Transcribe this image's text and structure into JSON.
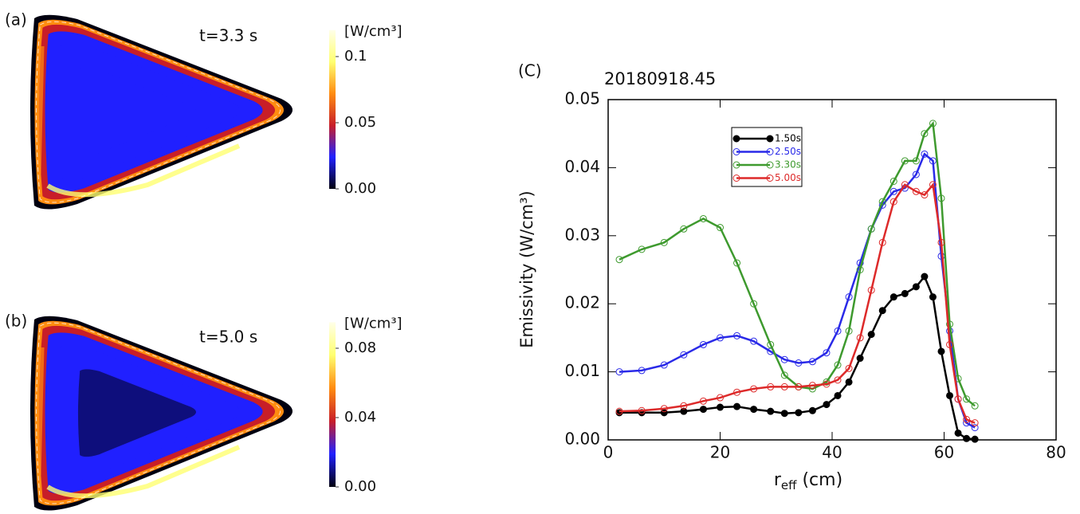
{
  "chart_data": [
    {
      "type": "heatmap",
      "panel_label": "(a)",
      "annotation": "t=3.3 s",
      "colorbar_label": "[W/cm³]",
      "clim": [
        0,
        0.12
      ],
      "cticks": [
        {
          "value": 0,
          "label": "0.00"
        },
        0.05,
        0.1
      ],
      "colormap": [
        "#000010",
        "#2020ff",
        "#c81e28",
        "#ff8c10",
        "#ffff70",
        "#ffffe8"
      ]
    },
    {
      "type": "heatmap",
      "panel_label": "(b)",
      "annotation": "t=5.0 s",
      "colorbar_label": "[W/cm³]",
      "clim": [
        0,
        0.095
      ],
      "cticks": [
        {
          "value": 0,
          "label": "0.00"
        },
        0.04,
        0.08
      ],
      "colormap": [
        "#000010",
        "#2020ff",
        "#c81e28",
        "#ff8c10",
        "#ffff70",
        "#ffffe8"
      ]
    },
    {
      "type": "line",
      "panel_label": "(C)",
      "title": "20180918.45",
      "xlabel": [
        "r",
        "eff",
        " (cm)"
      ],
      "ylabel": "Emissivity (W/cm³)",
      "xlim": [
        0,
        80
      ],
      "xticks": [
        0,
        20,
        40,
        60,
        80
      ],
      "ylim": [
        0,
        0.05
      ],
      "yticks": [
        {
          "value": 0,
          "label": "0.00"
        },
        0.01,
        0.02,
        0.03,
        0.04,
        0.05
      ],
      "x": [
        2,
        6,
        10,
        13.5,
        17,
        20,
        23,
        26,
        29,
        31.5,
        34,
        36.5,
        39,
        41,
        43,
        45,
        47,
        49,
        51,
        53,
        55,
        56.5,
        58,
        59.5,
        61,
        62.5,
        64,
        65.5
      ],
      "series": [
        {
          "name": "1.50s",
          "color": "#000000",
          "filled": true,
          "values": [
            0.004,
            0.004,
            0.004,
            0.0042,
            0.0045,
            0.0048,
            0.0049,
            0.0045,
            0.0042,
            0.0039,
            0.004,
            0.0043,
            0.0052,
            0.0065,
            0.0085,
            0.012,
            0.0155,
            0.019,
            0.021,
            0.0215,
            0.0225,
            0.024,
            0.021,
            0.013,
            0.0065,
            0.001,
            0.0002,
            0.0001
          ]
        },
        {
          "name": "2.50s",
          "color": "#2a2ae8",
          "filled": false,
          "values": [
            0.01,
            0.0102,
            0.011,
            0.0125,
            0.014,
            0.015,
            0.0153,
            0.0145,
            0.013,
            0.0118,
            0.0113,
            0.0115,
            0.0128,
            0.016,
            0.021,
            0.026,
            0.031,
            0.0345,
            0.0365,
            0.037,
            0.039,
            0.042,
            0.041,
            0.027,
            0.016,
            0.006,
            0.0025,
            0.0018
          ]
        },
        {
          "name": "3.30s",
          "color": "#3e9a2e",
          "filled": false,
          "values": [
            0.0265,
            0.028,
            0.029,
            0.031,
            0.0325,
            0.0312,
            0.026,
            0.02,
            0.014,
            0.0095,
            0.0078,
            0.0075,
            0.0085,
            0.011,
            0.016,
            0.025,
            0.031,
            0.035,
            0.038,
            0.041,
            0.041,
            0.045,
            0.0465,
            0.0355,
            0.017,
            0.009,
            0.006,
            0.005
          ]
        },
        {
          "name": "5.00s",
          "color": "#dd2a2a",
          "filled": false,
          "values": [
            0.0042,
            0.0043,
            0.0046,
            0.005,
            0.0057,
            0.0062,
            0.007,
            0.0075,
            0.0078,
            0.0078,
            0.0078,
            0.008,
            0.0082,
            0.0088,
            0.0105,
            0.015,
            0.022,
            0.029,
            0.035,
            0.0375,
            0.0365,
            0.036,
            0.0375,
            0.029,
            0.014,
            0.006,
            0.003,
            0.0025
          ]
        }
      ]
    }
  ]
}
